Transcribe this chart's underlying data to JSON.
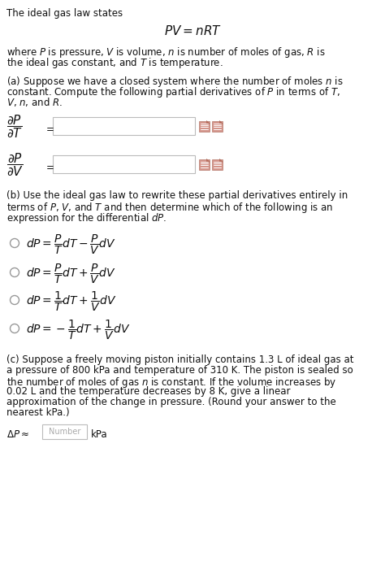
{
  "bg_color": "#ffffff",
  "text_color": "#000000",
  "title_line": "The ideal gas law states",
  "main_eq": "$PV = nRT$",
  "where_line1": "where $P$ is pressure, $V$ is volume, $n$ is number of moles of gas, $R$ is",
  "where_line2": "the ideal gas constant, and $T$ is temperature.",
  "parta_line1": "(a) Suppose we have a closed system where the number of moles $n$ is",
  "parta_line2": "constant. Compute the following partial derivatives of $P$ in terms of $T$,",
  "parta_line3": "$V$, $n$, and $R$.",
  "deriv1_lhs": "$\\dfrac{\\partial P}{\\partial T}$",
  "deriv2_lhs": "$\\dfrac{\\partial P}{\\partial V}$",
  "partb_line1": "(b) Use the ideal gas law to rewrite these partial derivatives entirely in",
  "partb_line2": "terms of $P$, $V$, and $T$ and then determine which of the following is an",
  "partb_line3": "expression for the differential $dP$.",
  "choice1": "$dP = \\dfrac{P}{T}dT - \\dfrac{P}{V}dV$",
  "choice2": "$dP = \\dfrac{P}{T}dT + \\dfrac{P}{V}dV$",
  "choice3": "$dP = \\dfrac{1}{T}dT + \\dfrac{1}{V}dV$",
  "choice4": "$dP = -\\dfrac{1}{T}dT + \\dfrac{1}{V}dV$",
  "partc_line1": "(c) Suppose a freely moving piston initially contains 1.3 L of ideal gas at",
  "partc_line2": "a pressure of 800 kPa and temperature of 310 K. The piston is sealed so",
  "partc_line3": "the number of moles of gas $n$ is constant. If the volume increases by",
  "partc_line4": "0.02 L and the temperature decreases by 8 K, give a linear",
  "partc_line5": "approximation of the change in pressure. (Round your answer to the",
  "partc_line6": "nearest kPa.)",
  "delta_label": "$\\Delta P \\approx$",
  "unit_text": "kPa",
  "number_placeholder": "Number"
}
